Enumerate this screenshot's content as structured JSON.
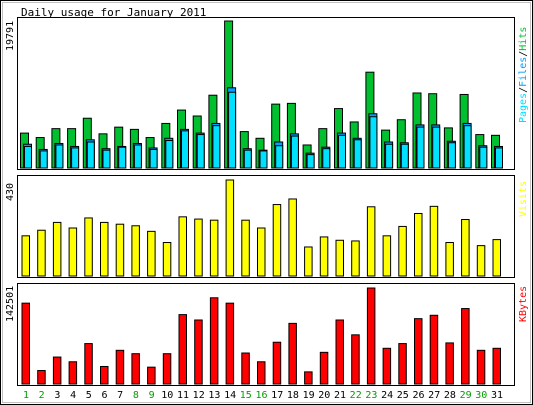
{
  "title": "Daily usage for January 2011",
  "colors": {
    "background": "#ffffff",
    "panel_background": "#ffffff",
    "frame": "#000000",
    "hits": "#00c030",
    "files": "#00a0ff",
    "pages": "#00e0ff",
    "visits": "#ffff00",
    "kbytes": "#ff0000",
    "weekday_label": "#000000",
    "weekend_label": "#00a000"
  },
  "legend": {
    "top_parts": [
      {
        "text": "Pages",
        "color": "#00e0ff"
      },
      {
        "text": "/",
        "color": "#000000"
      },
      {
        "text": "Files",
        "color": "#00a0ff"
      },
      {
        "text": "/",
        "color": "#000000"
      },
      {
        "text": "Hits",
        "color": "#00c030"
      }
    ],
    "middle": "Visits",
    "bottom": "KBytes"
  },
  "chart_data": {
    "type": "bar",
    "title": "Daily usage for January 2011",
    "categories": [
      "1",
      "2",
      "3",
      "4",
      "5",
      "6",
      "7",
      "8",
      "9",
      "10",
      "11",
      "12",
      "13",
      "14",
      "15",
      "16",
      "17",
      "18",
      "19",
      "20",
      "21",
      "22",
      "23",
      "24",
      "25",
      "26",
      "27",
      "28",
      "29",
      "30",
      "31"
    ],
    "weekend_days": [
      "1",
      "2",
      "8",
      "9",
      "15",
      "16",
      "22",
      "23",
      "29",
      "30"
    ],
    "panels": [
      {
        "name": "hits-files-pages",
        "ymax": 19791,
        "ymax_label": "19791",
        "series": [
          {
            "name": "Hits",
            "values": [
              4700,
              4100,
              5300,
              5300,
              6700,
              4600,
              5500,
              5200,
              4100,
              6000,
              7800,
              7000,
              9800,
              19791,
              4900,
              4000,
              8600,
              8700,
              3100,
              5300,
              8000,
              6200,
              12900,
              5100,
              6500,
              10100,
              10000,
              5400,
              9900,
              4500,
              4400
            ]
          },
          {
            "name": "Files",
            "values": [
              3200,
              2500,
              3300,
              2900,
              3800,
              2600,
              2900,
              3300,
              2700,
              4000,
              5200,
              4700,
              6000,
              10800,
              2600,
              2400,
              3500,
              4600,
              2000,
              2800,
              4700,
              4000,
              7300,
              3500,
              3400,
              5800,
              5800,
              3600,
              6000,
              3000,
              2900
            ]
          },
          {
            "name": "Pages",
            "values": [
              2900,
              2300,
              3100,
              2700,
              3500,
              2400,
              2800,
              3100,
              2500,
              3700,
              5000,
              4500,
              5700,
              10200,
              2400,
              2300,
              3000,
              4300,
              1800,
              2600,
              4400,
              3800,
              6900,
              3200,
              3200,
              5500,
              5500,
              3400,
              5700,
              2800,
              2700
            ]
          }
        ]
      },
      {
        "name": "visits",
        "ymax": 430,
        "ymax_label": "430",
        "series": [
          {
            "name": "Visits",
            "values": [
              180,
              205,
              240,
              215,
              260,
              240,
              232,
              225,
              200,
              150,
              265,
              255,
              250,
              430,
              250,
              215,
              320,
              345,
              130,
              175,
              160,
              157,
              310,
              180,
              222,
              280,
              312,
              150,
              253,
              136,
              163
            ]
          }
        ]
      },
      {
        "name": "kbytes",
        "ymax": 142501,
        "ymax_label": "142501",
        "series": [
          {
            "name": "KBytes",
            "values": [
              120000,
              20000,
              40000,
              33000,
              60000,
              26000,
              50000,
              45000,
              25000,
              45000,
              103000,
              95000,
              128000,
              120000,
              46000,
              33000,
              62000,
              90000,
              18000,
              47000,
              95000,
              73000,
              142501,
              53000,
              60000,
              97000,
              102000,
              61000,
              112000,
              50000,
              53000
            ]
          }
        ]
      }
    ]
  }
}
